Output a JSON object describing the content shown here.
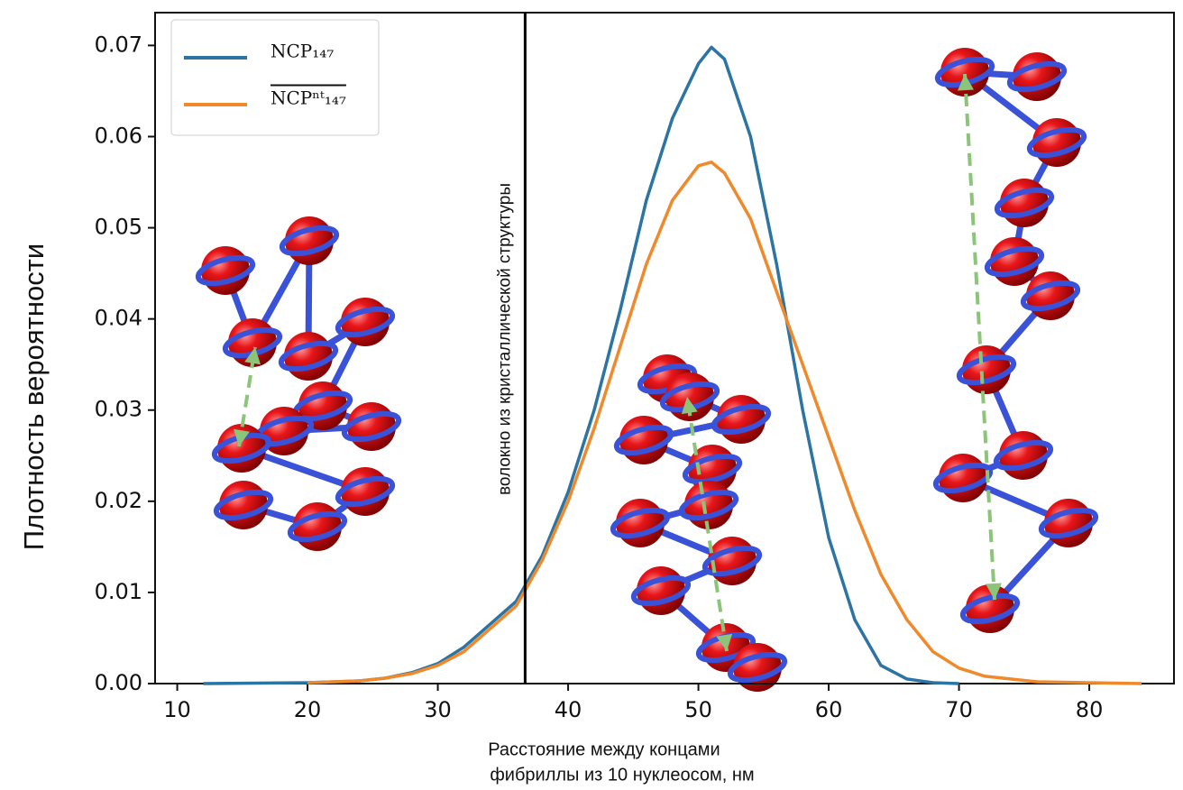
{
  "chart_data": {
    "type": "line",
    "y_label": "Плотность вероятности",
    "x_label_lines": [
      "Расстояние между концами",
      "фибриллы  из 10 нуклеосом, нм"
    ],
    "x": [
      12,
      20,
      24,
      26,
      28,
      30,
      32,
      34,
      36,
      38,
      40,
      42,
      44,
      46,
      48,
      50,
      51,
      52,
      54,
      56,
      58,
      60,
      62,
      64,
      66,
      68,
      70,
      72,
      76,
      80,
      84
    ],
    "series": [
      {
        "name": "NCP₁₄₇",
        "color": "#2b74a3",
        "values": [
          0,
          0.0001,
          0.0003,
          0.0006,
          0.0012,
          0.0022,
          0.004,
          0.0065,
          0.009,
          0.014,
          0.021,
          0.03,
          0.041,
          0.053,
          0.062,
          0.068,
          0.0698,
          0.0685,
          0.06,
          0.046,
          0.03,
          0.016,
          0.007,
          0.002,
          0.0005,
          0.0001,
          0,
          null,
          null,
          null,
          null
        ]
      },
      {
        "name": "NCPⁿᵗ₁₄₇",
        "color": "#f0892b",
        "values": [
          null,
          0.0001,
          0.0003,
          0.0006,
          0.0011,
          0.002,
          0.0035,
          0.006,
          0.0085,
          0.0135,
          0.02,
          0.028,
          0.037,
          0.046,
          0.053,
          0.0568,
          0.0572,
          0.056,
          0.051,
          0.043,
          0.035,
          0.027,
          0.019,
          0.012,
          0.007,
          0.0035,
          0.0017,
          0.0008,
          0.0002,
          0.0001,
          0
        ]
      }
    ],
    "vline": {
      "x": 36.7,
      "label": "волокно из кристаллической структуры"
    },
    "xlim": [
      8.3,
      86.5
    ],
    "ylim": [
      0,
      0.0736
    ],
    "xticks": [
      10,
      20,
      30,
      40,
      50,
      60,
      70,
      80
    ],
    "yticks": [
      {
        "value": 0,
        "label": "0.00"
      },
      0.01,
      0.02,
      0.03,
      0.04,
      0.05,
      0.06,
      0.07
    ],
    "legend": "upper left",
    "grid": false
  }
}
